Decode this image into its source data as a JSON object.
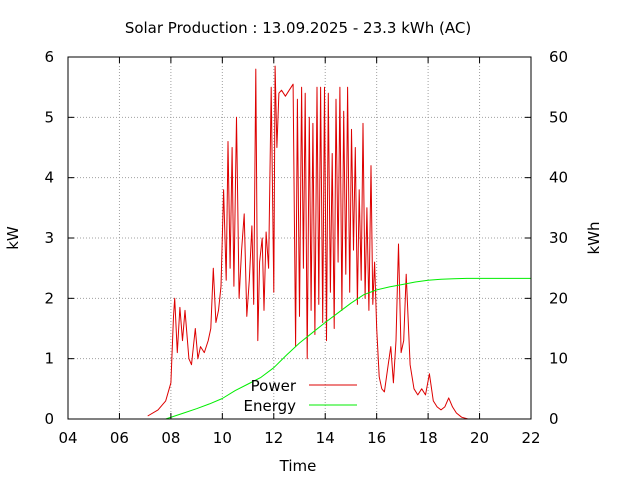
{
  "chart_data": {
    "type": "line",
    "title": "Solar Production : 13.09.2025 - 23.3 kWh (AC)",
    "xlabel": "Time",
    "ylabel": "kW",
    "y2label": "kWh",
    "xlim": [
      4,
      22
    ],
    "ylim": [
      0,
      6
    ],
    "y2lim": [
      0,
      60
    ],
    "x_ticks": [
      "04",
      "06",
      "08",
      "10",
      "12",
      "14",
      "16",
      "18",
      "20",
      "22"
    ],
    "x_tick_values": [
      4,
      6,
      8,
      10,
      12,
      14,
      16,
      18,
      20,
      22
    ],
    "y_ticks": [
      "0",
      "1",
      "2",
      "3",
      "4",
      "5",
      "6"
    ],
    "y2_ticks": [
      "0",
      "10",
      "20",
      "30",
      "40",
      "50",
      "60"
    ],
    "grid": true,
    "legend_position": "bottom-center",
    "series": [
      {
        "name": "Power",
        "axis": "left",
        "color": "#dd0000",
        "x": [
          7.1,
          7.5,
          7.8,
          8.0,
          8.1,
          8.15,
          8.25,
          8.35,
          8.45,
          8.55,
          8.7,
          8.8,
          8.95,
          9.05,
          9.15,
          9.3,
          9.45,
          9.55,
          9.65,
          9.75,
          9.85,
          9.95,
          10.05,
          10.15,
          10.22,
          10.3,
          10.38,
          10.45,
          10.55,
          10.65,
          10.75,
          10.85,
          10.95,
          11.05,
          11.15,
          11.22,
          11.3,
          11.38,
          11.45,
          11.55,
          11.62,
          11.7,
          11.8,
          11.9,
          12.0,
          12.05,
          12.12,
          12.2,
          12.3,
          12.45,
          12.6,
          12.75,
          12.85,
          12.92,
          13.0,
          13.08,
          13.15,
          13.22,
          13.3,
          13.38,
          13.45,
          13.52,
          13.6,
          13.68,
          13.75,
          13.82,
          13.9,
          13.97,
          14.05,
          14.12,
          14.2,
          14.27,
          14.35,
          14.42,
          14.5,
          14.57,
          14.65,
          14.72,
          14.8,
          14.87,
          14.95,
          15.02,
          15.1,
          15.17,
          15.25,
          15.32,
          15.4,
          15.47,
          15.55,
          15.62,
          15.7,
          15.78,
          15.85,
          15.92,
          16.0,
          16.1,
          16.2,
          16.3,
          16.45,
          16.55,
          16.65,
          16.75,
          16.85,
          16.95,
          17.05,
          17.15,
          17.3,
          17.45,
          17.6,
          17.75,
          17.9,
          18.05,
          18.2,
          18.35,
          18.5,
          18.65,
          18.8,
          18.95,
          19.1,
          19.3,
          19.55
        ],
        "y": [
          0.05,
          0.15,
          0.3,
          0.6,
          1.7,
          2.0,
          1.1,
          1.85,
          1.3,
          1.8,
          1.0,
          0.9,
          1.5,
          1.0,
          1.2,
          1.1,
          1.3,
          1.5,
          2.5,
          1.6,
          1.8,
          2.2,
          3.8,
          2.3,
          4.6,
          2.5,
          4.5,
          2.2,
          5.0,
          2.0,
          2.8,
          3.4,
          1.7,
          2.3,
          3.2,
          1.9,
          5.8,
          1.3,
          2.6,
          3.0,
          1.8,
          3.1,
          2.5,
          5.5,
          2.1,
          5.85,
          4.5,
          5.4,
          5.45,
          5.35,
          5.45,
          5.55,
          1.2,
          5.3,
          1.7,
          5.5,
          2.5,
          5.4,
          1.0,
          5.0,
          1.8,
          4.9,
          1.4,
          5.5,
          1.9,
          5.5,
          1.6,
          5.5,
          1.3,
          5.4,
          2.1,
          4.4,
          1.5,
          5.3,
          2.6,
          5.5,
          1.8,
          5.1,
          2.4,
          5.5,
          2.1,
          4.8,
          2.8,
          4.5,
          1.9,
          3.8,
          2.3,
          4.9,
          2.0,
          3.5,
          1.8,
          4.2,
          1.9,
          2.6,
          1.5,
          0.7,
          0.5,
          0.45,
          0.9,
          1.2,
          0.6,
          1.3,
          2.9,
          1.1,
          1.3,
          2.4,
          0.9,
          0.5,
          0.4,
          0.5,
          0.4,
          0.75,
          0.3,
          0.2,
          0.15,
          0.2,
          0.35,
          0.2,
          0.1,
          0.03,
          0.0
        ]
      },
      {
        "name": "Energy",
        "axis": "right",
        "color": "#00ee00",
        "x": [
          7.8,
          8.5,
          9.0,
          9.5,
          10.0,
          10.5,
          11.0,
          11.5,
          12.0,
          12.5,
          13.0,
          13.5,
          14.0,
          14.5,
          15.0,
          15.5,
          16.0,
          16.5,
          17.0,
          17.5,
          18.0,
          18.5,
          19.0,
          19.5,
          20.0,
          22.0
        ],
        "y": [
          0.0,
          1.0,
          1.7,
          2.5,
          3.4,
          4.7,
          5.8,
          6.9,
          8.5,
          10.6,
          12.6,
          14.3,
          16.0,
          17.6,
          19.2,
          20.6,
          21.4,
          21.9,
          22.3,
          22.7,
          23.0,
          23.15,
          23.25,
          23.3,
          23.3,
          23.3
        ]
      }
    ]
  }
}
